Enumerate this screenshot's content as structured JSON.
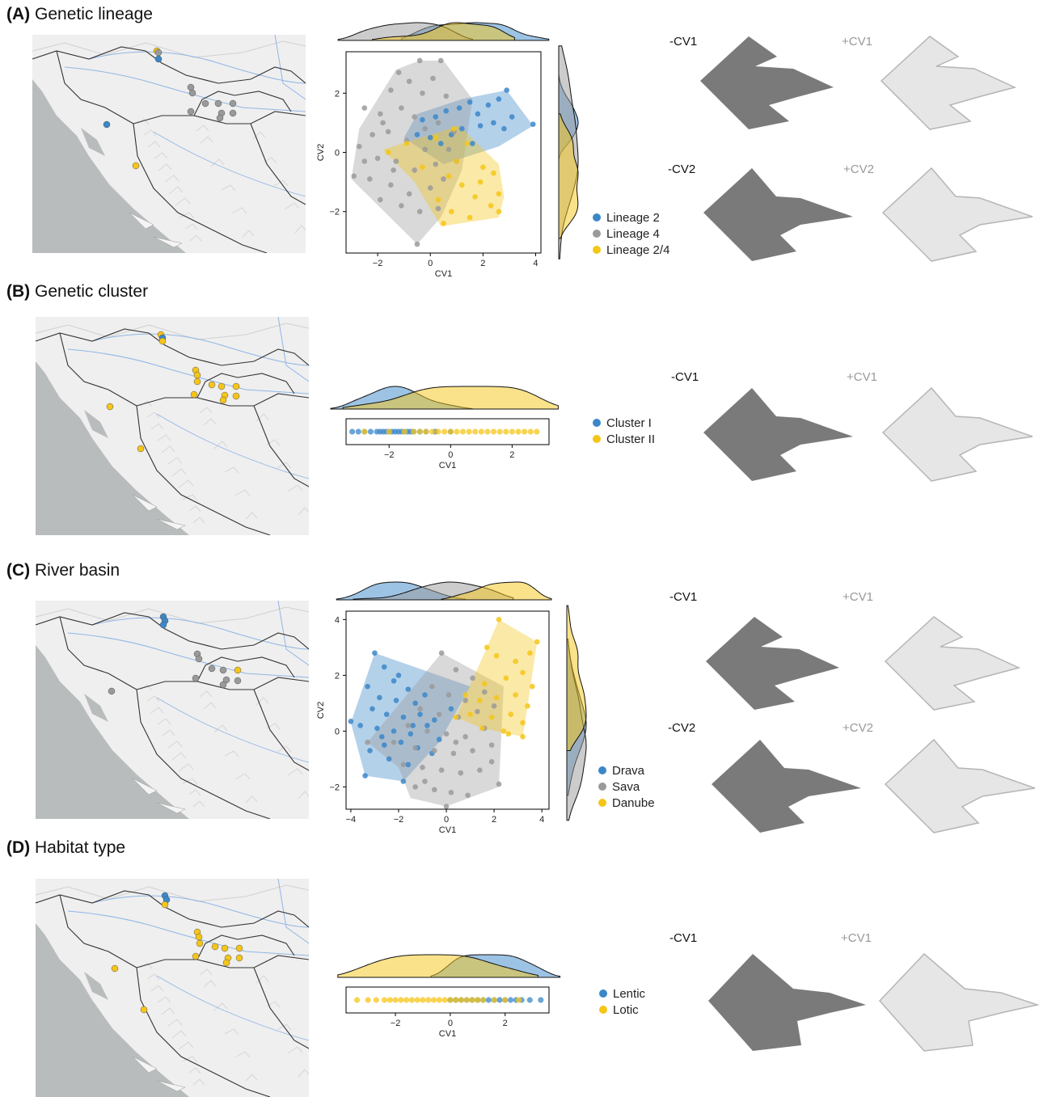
{
  "colors": {
    "lineage2": "#3b87c9",
    "grey": "#9a9a9a",
    "yellow": "#f5c518",
    "shapeDark": "#7a7a7a",
    "shapeLight": "#e6e6e6",
    "shapeLightStroke": "#b5b5b5"
  },
  "panels": [
    {
      "id": "A",
      "label": "(A)",
      "title": "Genetic lineage",
      "shape_labels": [
        "-CV1",
        "+CV1",
        "-CV2",
        "+CV2"
      ]
    },
    {
      "id": "B",
      "label": "(B)",
      "title": "Genetic cluster",
      "shape_labels": [
        "-CV1",
        "+CV1"
      ]
    },
    {
      "id": "C",
      "label": "(C)",
      "title": "River basin",
      "shape_labels": [
        "-CV1",
        "+CV1",
        "-CV2",
        "+CV2"
      ]
    },
    {
      "id": "D",
      "label": "(D)",
      "title": "Habitat type",
      "shape_labels": [
        "-CV1",
        "+CV1"
      ]
    }
  ],
  "chart_data": [
    {
      "panel": "A",
      "type": "scatter",
      "xlabel": "CV1",
      "ylabel": "CV2",
      "xlim": [
        -3.2,
        4.2
      ],
      "ylim": [
        -3.4,
        3.4
      ],
      "xticks": [
        -2,
        0,
        2,
        4
      ],
      "yticks": [
        -2,
        0,
        2
      ],
      "legend": "right",
      "series": [
        {
          "name": "Lineage 2",
          "color": "lineage2",
          "hull": [
            [
              -0.5,
              1.3
            ],
            [
              1.2,
              1.8
            ],
            [
              2.9,
              2.1
            ],
            [
              3.9,
              0.9
            ],
            [
              2.6,
              0.2
            ],
            [
              0.5,
              -0.4
            ],
            [
              -1,
              0.5
            ]
          ],
          "points": [
            [
              -0.3,
              1.1
            ],
            [
              0.2,
              1.2
            ],
            [
              0.6,
              1.4
            ],
            [
              1.1,
              1.5
            ],
            [
              1.5,
              1.7
            ],
            [
              1.8,
              1.3
            ],
            [
              2.2,
              1.6
            ],
            [
              2.6,
              1.8
            ],
            [
              2.9,
              2.1
            ],
            [
              3.1,
              1.2
            ],
            [
              3.9,
              0.95
            ],
            [
              2.8,
              0.8
            ],
            [
              2.4,
              1.0
            ],
            [
              1.9,
              0.9
            ],
            [
              1.2,
              0.8
            ],
            [
              0.8,
              0.6
            ],
            [
              0.4,
              0.3
            ],
            [
              0,
              0.5
            ],
            [
              -0.5,
              0.6
            ],
            [
              1.6,
              0.3
            ]
          ]
        },
        {
          "name": "Lineage 4",
          "color": "grey",
          "hull": [
            [
              -1.3,
              2.8
            ],
            [
              -0.4,
              3.1
            ],
            [
              0.5,
              3.1
            ],
            [
              1.6,
              1.8
            ],
            [
              1.2,
              -0.6
            ],
            [
              0.4,
              -2.2
            ],
            [
              -0.5,
              -3.1
            ],
            [
              -3,
              -0.9
            ],
            [
              -2.7,
              0.8
            ]
          ],
          "points": [
            [
              -0.4,
              3.1
            ],
            [
              0.4,
              3.1
            ],
            [
              -1.2,
              2.7
            ],
            [
              -0.8,
              2.4
            ],
            [
              0.1,
              2.5
            ],
            [
              -1.5,
              2.1
            ],
            [
              -0.3,
              2.0
            ],
            [
              0.6,
              1.9
            ],
            [
              -2.5,
              1.5
            ],
            [
              -1.9,
              1.3
            ],
            [
              -1.1,
              1.5
            ],
            [
              -0.6,
              1.2
            ],
            [
              0.3,
              1.0
            ],
            [
              -2.2,
              0.6
            ],
            [
              -1.6,
              0.7
            ],
            [
              -0.9,
              0.4
            ],
            [
              -0.2,
              0.1
            ],
            [
              0.7,
              0.1
            ],
            [
              -2.7,
              0.2
            ],
            [
              -2.0,
              -0.2
            ],
            [
              -1.3,
              -0.3
            ],
            [
              -0.6,
              -0.6
            ],
            [
              0.2,
              -0.4
            ],
            [
              1.0,
              -0.3
            ],
            [
              -2.9,
              -0.8
            ],
            [
              -2.3,
              -0.9
            ],
            [
              -1.5,
              -1.1
            ],
            [
              -0.8,
              -1.4
            ],
            [
              0.0,
              -1.2
            ],
            [
              -1.9,
              -1.6
            ],
            [
              -1.1,
              -1.8
            ],
            [
              -0.4,
              -2.0
            ],
            [
              0.3,
              -1.9
            ],
            [
              -0.5,
              -3.1
            ],
            [
              -1.4,
              -0.6
            ],
            [
              -0.2,
              0.8
            ],
            [
              0.9,
              0.7
            ],
            [
              -2.5,
              -0.3
            ],
            [
              -1.8,
              1.0
            ],
            [
              0.5,
              -0.9
            ]
          ]
        },
        {
          "name": "Lineage 2/4",
          "color": "yellow",
          "hull": [
            [
              -1.8,
              0.1
            ],
            [
              1.1,
              0.9
            ],
            [
              2.6,
              -0.4
            ],
            [
              2.8,
              -1.5
            ],
            [
              2.6,
              -2.2
            ],
            [
              0.4,
              -2.5
            ],
            [
              -0.6,
              -1.0
            ]
          ],
          "points": [
            [
              -1.6,
              0.0
            ],
            [
              -0.9,
              0.3
            ],
            [
              0.2,
              0.5
            ],
            [
              0.9,
              0.8
            ],
            [
              1.4,
              0.3
            ],
            [
              2.0,
              -0.5
            ],
            [
              2.4,
              -0.7
            ],
            [
              2.6,
              -1.4
            ],
            [
              2.3,
              -1.8
            ],
            [
              1.7,
              -1.5
            ],
            [
              1.2,
              -1.1
            ],
            [
              0.7,
              -0.8
            ],
            [
              0.3,
              -1.6
            ],
            [
              0.8,
              -2.0
            ],
            [
              0.5,
              -2.4
            ],
            [
              1.5,
              -2.2
            ],
            [
              2.6,
              -2.0
            ],
            [
              -0.3,
              -0.5
            ],
            [
              1.0,
              -0.3
            ],
            [
              1.9,
              -1.0
            ]
          ]
        }
      ],
      "legend_entries": [
        "Lineage 2",
        "Lineage 4",
        "Lineage 2/4"
      ]
    },
    {
      "panel": "B",
      "type": "scatter",
      "xlabel": "CV1",
      "xlim": [
        -3.4,
        3.2
      ],
      "xticks": [
        -2,
        0,
        2
      ],
      "legend": "right",
      "series": [
        {
          "name": "Cluster I",
          "color": "lineage2",
          "x": [
            -3.2,
            -3.0,
            -2.8,
            -2.6,
            -2.4,
            -2.3,
            -2.2,
            -2.1,
            -2.0,
            -1.9,
            -1.8,
            -1.7,
            -1.6,
            -1.5,
            -1.4,
            -1.3,
            -1.2,
            -1.0,
            -0.8,
            -0.5,
            0.0
          ]
        },
        {
          "name": "Cluster II",
          "color": "yellow",
          "x": [
            -2.8,
            -2.0,
            -1.5,
            -1.2,
            -1.0,
            -0.8,
            -0.6,
            -0.4,
            -0.2,
            0.0,
            0.2,
            0.4,
            0.6,
            0.8,
            1.0,
            1.2,
            1.4,
            1.6,
            1.8,
            2.0,
            2.2,
            2.4,
            2.6,
            2.8
          ]
        }
      ],
      "legend_entries": [
        "Cluster I",
        "Cluster II"
      ]
    },
    {
      "panel": "C",
      "type": "scatter",
      "xlabel": "CV1",
      "ylabel": "CV2",
      "xlim": [
        -4.2,
        4.3
      ],
      "ylim": [
        -2.8,
        4.3
      ],
      "xticks": [
        -4,
        -2,
        0,
        2,
        4
      ],
      "yticks": [
        -2,
        0,
        2,
        4
      ],
      "legend": "right",
      "series": [
        {
          "name": "Drava",
          "color": "lineage2",
          "hull": [
            [
              -3.0,
              2.8
            ],
            [
              1.0,
              1.6
            ],
            [
              -0.3,
              -0.4
            ],
            [
              -1.8,
              -1.8
            ],
            [
              -3.4,
              -1.6
            ],
            [
              -4.0,
              0.3
            ]
          ],
          "points": [
            [
              -3.0,
              2.8
            ],
            [
              -2.6,
              2.3
            ],
            [
              -3.3,
              1.6
            ],
            [
              -2.2,
              1.8
            ],
            [
              -1.6,
              1.5
            ],
            [
              -2.8,
              1.2
            ],
            [
              -2.1,
              1.1
            ],
            [
              -1.3,
              1.0
            ],
            [
              -3.1,
              0.8
            ],
            [
              -2.5,
              0.6
            ],
            [
              -1.8,
              0.5
            ],
            [
              -1.1,
              0.6
            ],
            [
              -0.5,
              0.4
            ],
            [
              -3.6,
              0.2
            ],
            [
              -2.9,
              0.1
            ],
            [
              -2.2,
              0.0
            ],
            [
              -1.5,
              -0.1
            ],
            [
              -0.8,
              0.2
            ],
            [
              -4.0,
              0.35
            ],
            [
              -2.6,
              -0.5
            ],
            [
              -1.9,
              -0.4
            ],
            [
              -1.2,
              -0.6
            ],
            [
              -3.2,
              -0.7
            ],
            [
              -2.4,
              -1.0
            ],
            [
              -1.6,
              -1.2
            ],
            [
              -3.4,
              -1.6
            ],
            [
              -1.8,
              -1.8
            ],
            [
              -0.3,
              -0.3
            ],
            [
              0.2,
              0.8
            ],
            [
              -2.0,
              2.0
            ],
            [
              -0.9,
              1.3
            ],
            [
              -2.7,
              -0.2
            ],
            [
              -1.4,
              0.2
            ],
            [
              -0.6,
              -0.8
            ]
          ]
        },
        {
          "name": "Sava",
          "color": "grey",
          "hull": [
            [
              -0.2,
              2.8
            ],
            [
              2.4,
              1.6
            ],
            [
              2.2,
              -2.0
            ],
            [
              0.0,
              -2.7
            ],
            [
              -1.5,
              -2.4
            ],
            [
              -2.0,
              -1.3
            ],
            [
              -3.3,
              -0.4
            ]
          ],
          "points": [
            [
              -0.2,
              2.8
            ],
            [
              0.4,
              2.2
            ],
            [
              1.1,
              1.9
            ],
            [
              -0.6,
              1.6
            ],
            [
              0.1,
              1.3
            ],
            [
              0.8,
              1.1
            ],
            [
              1.6,
              1.4
            ],
            [
              -1.1,
              0.8
            ],
            [
              -0.3,
              0.6
            ],
            [
              0.5,
              0.5
            ],
            [
              1.3,
              0.7
            ],
            [
              2.0,
              0.9
            ],
            [
              -1.6,
              0.2
            ],
            [
              -0.8,
              0.0
            ],
            [
              0.0,
              -0.1
            ],
            [
              0.8,
              -0.2
            ],
            [
              1.6,
              0.1
            ],
            [
              -2.2,
              -0.4
            ],
            [
              -1.3,
              -0.6
            ],
            [
              -0.5,
              -0.7
            ],
            [
              0.3,
              -0.8
            ],
            [
              1.1,
              -0.7
            ],
            [
              1.9,
              -0.5
            ],
            [
              -1.8,
              -1.2
            ],
            [
              -1.0,
              -1.3
            ],
            [
              -0.2,
              -1.4
            ],
            [
              0.6,
              -1.5
            ],
            [
              1.4,
              -1.4
            ],
            [
              2.2,
              -1.9
            ],
            [
              -1.3,
              -2.0
            ],
            [
              -0.5,
              -2.1
            ],
            [
              0.2,
              -2.2
            ],
            [
              0.0,
              -2.7
            ],
            [
              0.9,
              -2.3
            ],
            [
              -3.3,
              -0.4
            ],
            [
              1.9,
              -1.1
            ],
            [
              0.4,
              -0.4
            ],
            [
              -0.9,
              -1.8
            ]
          ]
        },
        {
          "name": "Danube",
          "color": "yellow",
          "hull": [
            [
              2.2,
              4.0
            ],
            [
              3.8,
              3.2
            ],
            [
              3.4,
              0.9
            ],
            [
              3.2,
              -0.2
            ],
            [
              1.5,
              0.1
            ],
            [
              0.4,
              0.5
            ],
            [
              1.7,
              3.0
            ]
          ],
          "points": [
            [
              2.2,
              4.0
            ],
            [
              3.8,
              3.2
            ],
            [
              3.5,
              2.8
            ],
            [
              2.1,
              2.7
            ],
            [
              2.9,
              2.5
            ],
            [
              1.7,
              3.0
            ],
            [
              3.2,
              2.1
            ],
            [
              2.5,
              1.9
            ],
            [
              1.6,
              1.7
            ],
            [
              3.6,
              1.6
            ],
            [
              2.9,
              1.3
            ],
            [
              2.1,
              1.2
            ],
            [
              1.4,
              1.1
            ],
            [
              3.4,
              0.9
            ],
            [
              2.7,
              0.6
            ],
            [
              1.9,
              0.5
            ],
            [
              1.0,
              0.6
            ],
            [
              0.4,
              0.5
            ],
            [
              3.2,
              0.3
            ],
            [
              2.4,
              0.0
            ],
            [
              1.5,
              0.1
            ],
            [
              3.2,
              -0.2
            ],
            [
              2.6,
              -0.1
            ],
            [
              0.8,
              1.3
            ]
          ]
        }
      ],
      "legend_entries": [
        "Drava",
        "Sava",
        "Danube"
      ]
    },
    {
      "panel": "D",
      "type": "scatter",
      "xlabel": "CV1",
      "xlim": [
        -3.8,
        3.6
      ],
      "xticks": [
        -2,
        0,
        2
      ],
      "legend": "right",
      "series": [
        {
          "name": "Lentic",
          "color": "lineage2",
          "x": [
            0.0,
            0.2,
            0.4,
            0.6,
            0.8,
            1.0,
            1.2,
            1.4,
            1.6,
            1.8,
            2.0,
            2.2,
            2.4,
            2.6,
            2.9,
            3.3
          ]
        },
        {
          "name": "Lotic",
          "color": "yellow",
          "x": [
            -3.4,
            -3.0,
            -2.7,
            -2.4,
            -2.2,
            -2.0,
            -1.8,
            -1.6,
            -1.4,
            -1.2,
            -1.0,
            -0.8,
            -0.6,
            -0.4,
            -0.2,
            0.0,
            0.2,
            0.4,
            0.6,
            0.8,
            1.0,
            1.2,
            1.6,
            2.0,
            2.5
          ]
        }
      ],
      "legend_entries": [
        "Lentic",
        "Lotic"
      ]
    }
  ]
}
